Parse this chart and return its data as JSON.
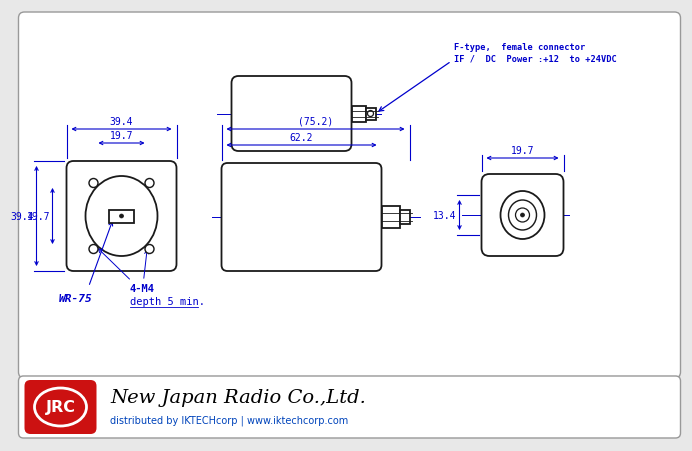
{
  "bg_color": "#e8e8e8",
  "diagram_bg": "#ffffff",
  "line_color": "#1a1a1a",
  "dim_color": "#0000cc",
  "footer_bg": "#ffffff",
  "jrc_bg": "#cc1111",
  "company_name": "New Japan Radio Co.,Ltd.",
  "dist_text": "distributed by IKTECHcorp | www.iktechcorp.com",
  "annotation1": "F-type,  female connector",
  "annotation2": "IF /  DC  Power :+12  to +24VDC",
  "dim_39_4": "39.4",
  "dim_19_7_h": "19.7",
  "dim_19_7_v": "19.7",
  "dim_39_4_v": "39.4",
  "dim_75_2": "(75.2)",
  "dim_62_2": "62.2",
  "dim_19_7_r": "19.7",
  "dim_13_4": "13.4",
  "label_wr75": "WR-75",
  "label_4m4": "4-M4",
  "label_depth": "depth 5 min."
}
